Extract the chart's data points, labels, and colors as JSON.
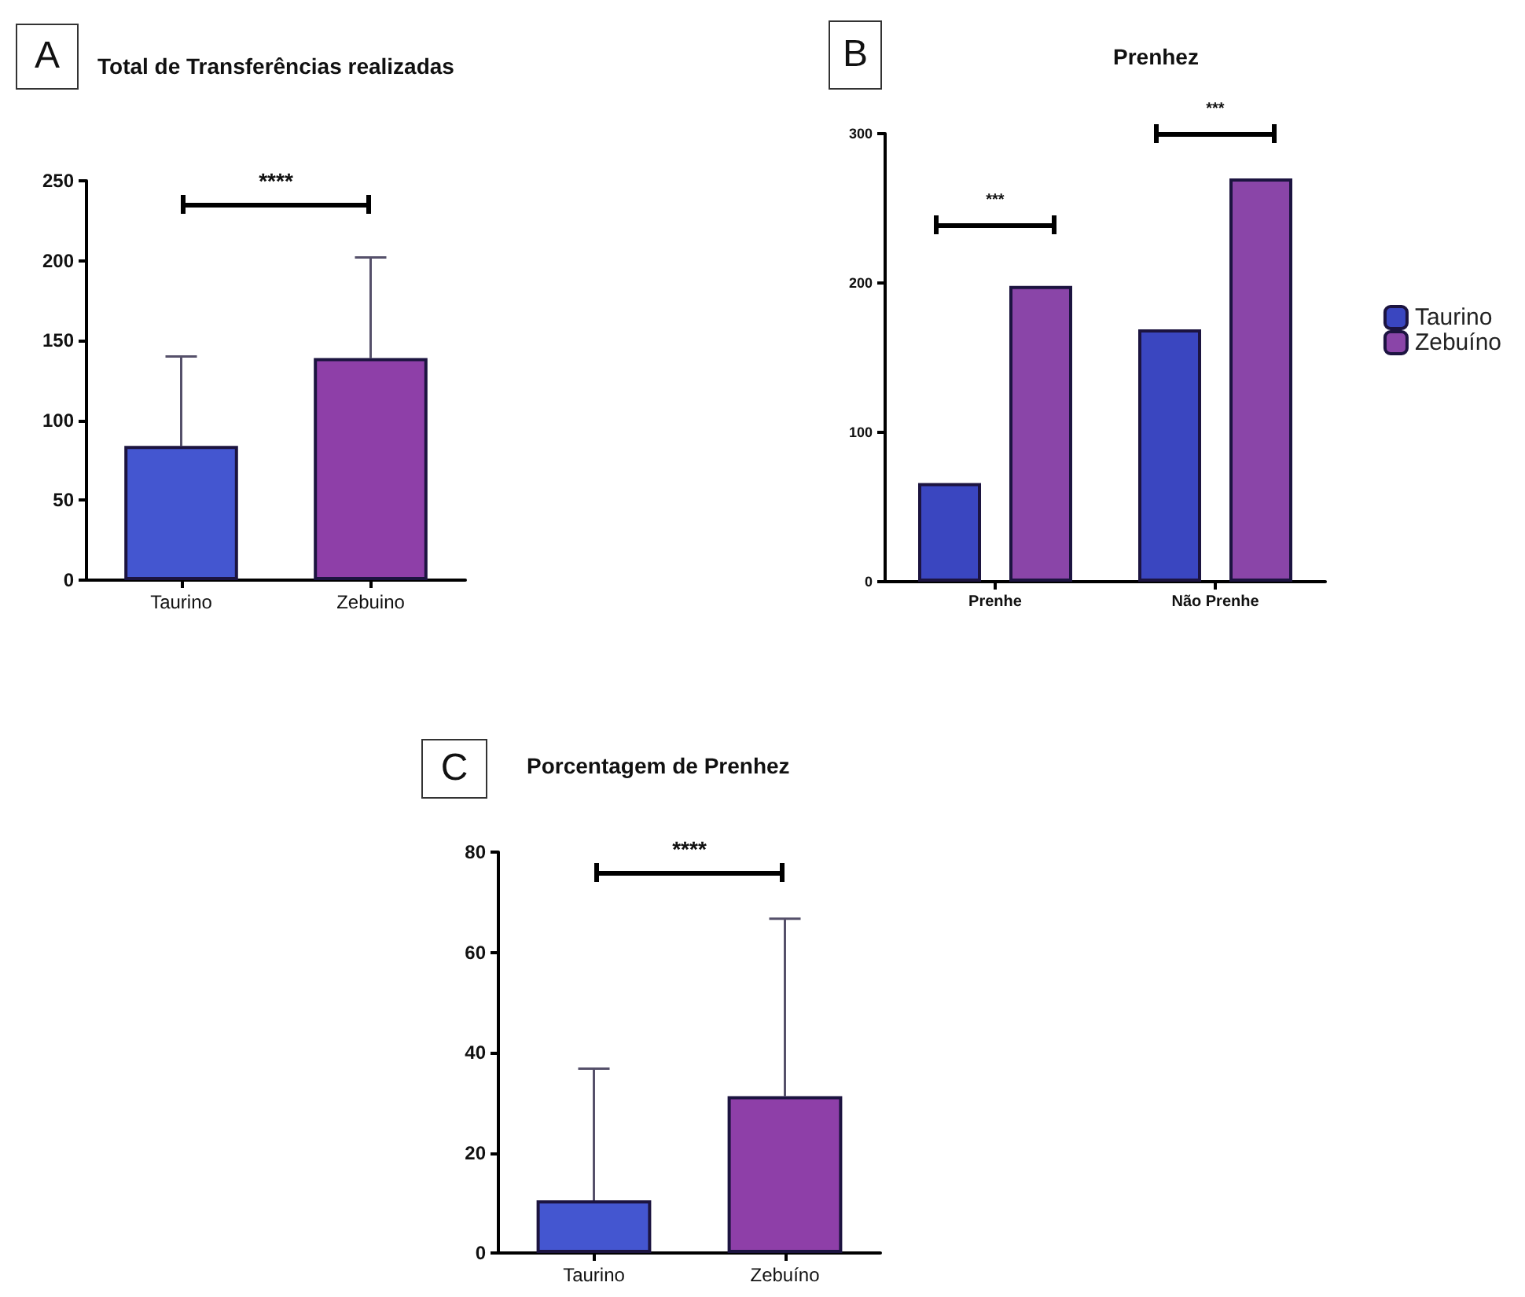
{
  "chart_data": [
    {
      "type": "bar",
      "title": "Total de Transferências realizadas",
      "categories": [
        "Taurino",
        "Zebuino"
      ],
      "values": [
        84,
        139
      ],
      "colors": [
        "#4456d0",
        "#8e3fa8"
      ],
      "errors": [
        [
          84,
          140
        ],
        [
          139,
          202
        ]
      ],
      "ylim": [
        0,
        250
      ],
      "yticks": [
        0,
        50,
        100,
        150,
        200,
        250
      ],
      "grid": false,
      "legend": false,
      "annotations": [
        "A",
        "****"
      ]
    },
    {
      "type": "bar",
      "title": "Prenhez",
      "categories": [
        "Prenhe",
        "Não Prenhe"
      ],
      "series": [
        {
          "name": "Taurino",
          "color": "#3a46c0",
          "values": [
            66,
            169
          ]
        },
        {
          "name": "Zebuíno",
          "color": "#8a45a8",
          "values": [
            198,
            270
          ]
        }
      ],
      "ylim": [
        0,
        300
      ],
      "yticks": [
        0,
        100,
        200,
        300
      ],
      "grid": false,
      "legend": "right",
      "annotations": [
        "B",
        "***",
        "***"
      ]
    },
    {
      "type": "bar",
      "title": "Porcentagem de Prenhez",
      "categories": [
        "Taurino",
        "Zebuíno"
      ],
      "values": [
        10.5,
        31.3
      ],
      "colors": [
        "#4456d0",
        "#8e3fa8"
      ],
      "errors": [
        [
          10.5,
          36.8
        ],
        [
          31.3,
          66.7
        ]
      ],
      "ylim": [
        0,
        80
      ],
      "yticks": [
        0,
        20,
        40,
        60,
        80
      ],
      "grid": false,
      "legend": false,
      "annotations": [
        "C",
        "****"
      ]
    }
  ]
}
